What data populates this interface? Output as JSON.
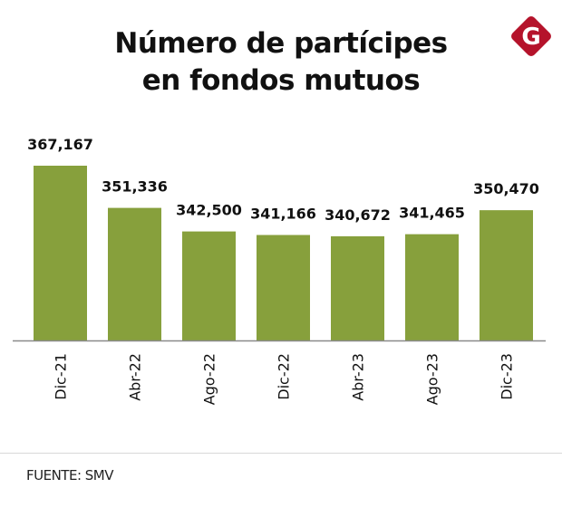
{
  "header": {
    "title_line1": "Número de partícipes",
    "title_line2": "en fondos mutuos",
    "logo_icon": "gestion-g-logo-icon",
    "logo_letter": "G",
    "logo_color": "#b5132b"
  },
  "chart_data": {
    "type": "bar",
    "title": "Número de partícipes en fondos mutuos",
    "xlabel": "",
    "ylabel": "",
    "categories": [
      "Dic-21",
      "Abr-22",
      "Ago-22",
      "Dic-22",
      "Abr-23",
      "Ago-23",
      "Dic-23"
    ],
    "values": [
      367167,
      351336,
      342500,
      341166,
      340672,
      341465,
      350470
    ],
    "data_labels": [
      "367,167",
      "351,336",
      "342,500",
      "341,166",
      "340,672",
      "341,465",
      "350,470"
    ],
    "ylim": [
      301600,
      367167
    ],
    "grid": false,
    "legend": "none",
    "bar_color": "#87a03c"
  },
  "footer": {
    "source": "FUENTE: SMV"
  }
}
